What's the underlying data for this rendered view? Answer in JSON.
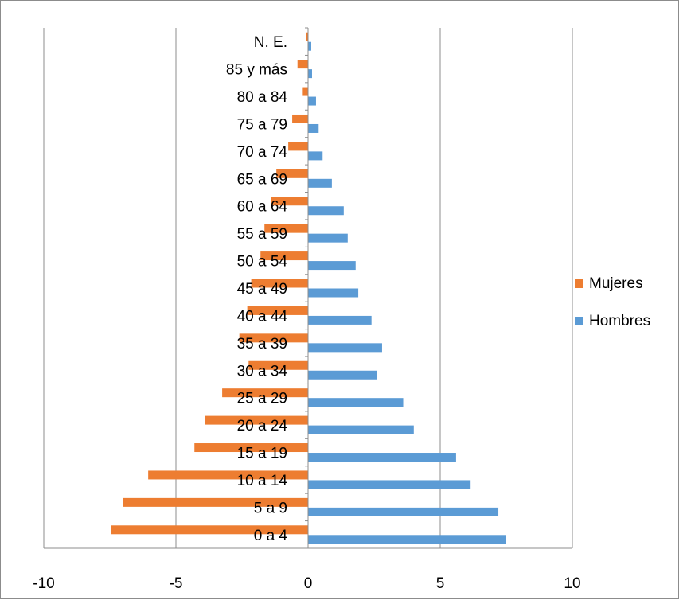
{
  "chart_data": {
    "type": "bar",
    "orientation": "horizontal",
    "categories": [
      "0 a 4",
      "5 a 9",
      "10 a 14",
      "15 a 19",
      "20 a 24",
      "25 a 29",
      "30 a 34",
      "35 a 39",
      "40 a 44",
      "45 a 49",
      "50 a 54",
      "55 a 59",
      "60 a 64",
      "65 a 69",
      "70 a 74",
      "75 a 79",
      "80 a 84",
      "85 y más",
      "N. E."
    ],
    "series": [
      {
        "name": "Mujeres",
        "color": "#ed7d31",
        "values": [
          -7.45,
          -7.0,
          -6.05,
          -4.3,
          -3.9,
          -3.25,
          -2.25,
          -2.6,
          -2.3,
          -2.15,
          -1.8,
          -1.65,
          -1.4,
          -1.2,
          -0.75,
          -0.6,
          -0.2,
          -0.4,
          -0.08
        ]
      },
      {
        "name": "Hombres",
        "color": "#5b9bd5",
        "values": [
          7.5,
          7.2,
          6.15,
          5.6,
          4.0,
          3.6,
          2.6,
          2.8,
          2.4,
          1.9,
          1.8,
          1.5,
          1.35,
          0.9,
          0.55,
          0.4,
          0.3,
          0.15,
          0.12
        ]
      }
    ],
    "xlim": [
      -10,
      10
    ],
    "xticks": [
      -10,
      -5,
      0,
      5,
      10
    ],
    "xtick_labels": [
      "-10",
      "-5",
      "0",
      "5",
      "10"
    ],
    "grid": "vertical",
    "legend_position": "right",
    "title": "",
    "xlabel": "",
    "ylabel": ""
  }
}
